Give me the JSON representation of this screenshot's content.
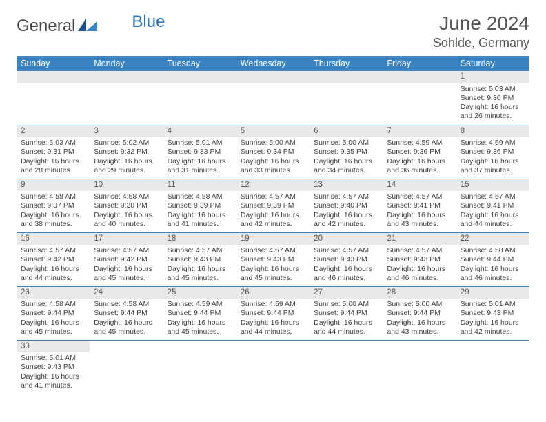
{
  "logo": {
    "text1": "General",
    "text2": "Blue"
  },
  "header": {
    "title": "June 2024",
    "location": "Sohlde, Germany"
  },
  "colors": {
    "header_bg": "#3b83c0",
    "header_text": "#ffffff",
    "daynum_bg": "#e9e9e9",
    "row_divider": "#3b83c0",
    "logo_blue": "#2f74b5",
    "text": "#444444"
  },
  "weekdays": [
    "Sunday",
    "Monday",
    "Tuesday",
    "Wednesday",
    "Thursday",
    "Friday",
    "Saturday"
  ],
  "weeks": [
    [
      null,
      null,
      null,
      null,
      null,
      null,
      {
        "n": "1",
        "sr": "Sunrise: 5:03 AM",
        "ss": "Sunset: 9:30 PM",
        "dl1": "Daylight: 16 hours",
        "dl2": "and 26 minutes."
      }
    ],
    [
      {
        "n": "2",
        "sr": "Sunrise: 5:03 AM",
        "ss": "Sunset: 9:31 PM",
        "dl1": "Daylight: 16 hours",
        "dl2": "and 28 minutes."
      },
      {
        "n": "3",
        "sr": "Sunrise: 5:02 AM",
        "ss": "Sunset: 9:32 PM",
        "dl1": "Daylight: 16 hours",
        "dl2": "and 29 minutes."
      },
      {
        "n": "4",
        "sr": "Sunrise: 5:01 AM",
        "ss": "Sunset: 9:33 PM",
        "dl1": "Daylight: 16 hours",
        "dl2": "and 31 minutes."
      },
      {
        "n": "5",
        "sr": "Sunrise: 5:00 AM",
        "ss": "Sunset: 9:34 PM",
        "dl1": "Daylight: 16 hours",
        "dl2": "and 33 minutes."
      },
      {
        "n": "6",
        "sr": "Sunrise: 5:00 AM",
        "ss": "Sunset: 9:35 PM",
        "dl1": "Daylight: 16 hours",
        "dl2": "and 34 minutes."
      },
      {
        "n": "7",
        "sr": "Sunrise: 4:59 AM",
        "ss": "Sunset: 9:36 PM",
        "dl1": "Daylight: 16 hours",
        "dl2": "and 36 minutes."
      },
      {
        "n": "8",
        "sr": "Sunrise: 4:59 AM",
        "ss": "Sunset: 9:36 PM",
        "dl1": "Daylight: 16 hours",
        "dl2": "and 37 minutes."
      }
    ],
    [
      {
        "n": "9",
        "sr": "Sunrise: 4:58 AM",
        "ss": "Sunset: 9:37 PM",
        "dl1": "Daylight: 16 hours",
        "dl2": "and 38 minutes."
      },
      {
        "n": "10",
        "sr": "Sunrise: 4:58 AM",
        "ss": "Sunset: 9:38 PM",
        "dl1": "Daylight: 16 hours",
        "dl2": "and 40 minutes."
      },
      {
        "n": "11",
        "sr": "Sunrise: 4:58 AM",
        "ss": "Sunset: 9:39 PM",
        "dl1": "Daylight: 16 hours",
        "dl2": "and 41 minutes."
      },
      {
        "n": "12",
        "sr": "Sunrise: 4:57 AM",
        "ss": "Sunset: 9:39 PM",
        "dl1": "Daylight: 16 hours",
        "dl2": "and 42 minutes."
      },
      {
        "n": "13",
        "sr": "Sunrise: 4:57 AM",
        "ss": "Sunset: 9:40 PM",
        "dl1": "Daylight: 16 hours",
        "dl2": "and 42 minutes."
      },
      {
        "n": "14",
        "sr": "Sunrise: 4:57 AM",
        "ss": "Sunset: 9:41 PM",
        "dl1": "Daylight: 16 hours",
        "dl2": "and 43 minutes."
      },
      {
        "n": "15",
        "sr": "Sunrise: 4:57 AM",
        "ss": "Sunset: 9:41 PM",
        "dl1": "Daylight: 16 hours",
        "dl2": "and 44 minutes."
      }
    ],
    [
      {
        "n": "16",
        "sr": "Sunrise: 4:57 AM",
        "ss": "Sunset: 9:42 PM",
        "dl1": "Daylight: 16 hours",
        "dl2": "and 44 minutes."
      },
      {
        "n": "17",
        "sr": "Sunrise: 4:57 AM",
        "ss": "Sunset: 9:42 PM",
        "dl1": "Daylight: 16 hours",
        "dl2": "and 45 minutes."
      },
      {
        "n": "18",
        "sr": "Sunrise: 4:57 AM",
        "ss": "Sunset: 9:43 PM",
        "dl1": "Daylight: 16 hours",
        "dl2": "and 45 minutes."
      },
      {
        "n": "19",
        "sr": "Sunrise: 4:57 AM",
        "ss": "Sunset: 9:43 PM",
        "dl1": "Daylight: 16 hours",
        "dl2": "and 45 minutes."
      },
      {
        "n": "20",
        "sr": "Sunrise: 4:57 AM",
        "ss": "Sunset: 9:43 PM",
        "dl1": "Daylight: 16 hours",
        "dl2": "and 46 minutes."
      },
      {
        "n": "21",
        "sr": "Sunrise: 4:57 AM",
        "ss": "Sunset: 9:43 PM",
        "dl1": "Daylight: 16 hours",
        "dl2": "and 46 minutes."
      },
      {
        "n": "22",
        "sr": "Sunrise: 4:58 AM",
        "ss": "Sunset: 9:44 PM",
        "dl1": "Daylight: 16 hours",
        "dl2": "and 46 minutes."
      }
    ],
    [
      {
        "n": "23",
        "sr": "Sunrise: 4:58 AM",
        "ss": "Sunset: 9:44 PM",
        "dl1": "Daylight: 16 hours",
        "dl2": "and 45 minutes."
      },
      {
        "n": "24",
        "sr": "Sunrise: 4:58 AM",
        "ss": "Sunset: 9:44 PM",
        "dl1": "Daylight: 16 hours",
        "dl2": "and 45 minutes."
      },
      {
        "n": "25",
        "sr": "Sunrise: 4:59 AM",
        "ss": "Sunset: 9:44 PM",
        "dl1": "Daylight: 16 hours",
        "dl2": "and 45 minutes."
      },
      {
        "n": "26",
        "sr": "Sunrise: 4:59 AM",
        "ss": "Sunset: 9:44 PM",
        "dl1": "Daylight: 16 hours",
        "dl2": "and 44 minutes."
      },
      {
        "n": "27",
        "sr": "Sunrise: 5:00 AM",
        "ss": "Sunset: 9:44 PM",
        "dl1": "Daylight: 16 hours",
        "dl2": "and 44 minutes."
      },
      {
        "n": "28",
        "sr": "Sunrise: 5:00 AM",
        "ss": "Sunset: 9:44 PM",
        "dl1": "Daylight: 16 hours",
        "dl2": "and 43 minutes."
      },
      {
        "n": "29",
        "sr": "Sunrise: 5:01 AM",
        "ss": "Sunset: 9:43 PM",
        "dl1": "Daylight: 16 hours",
        "dl2": "and 42 minutes."
      }
    ],
    [
      {
        "n": "30",
        "sr": "Sunrise: 5:01 AM",
        "ss": "Sunset: 9:43 PM",
        "dl1": "Daylight: 16 hours",
        "dl2": "and 41 minutes."
      },
      null,
      null,
      null,
      null,
      null,
      null
    ]
  ]
}
